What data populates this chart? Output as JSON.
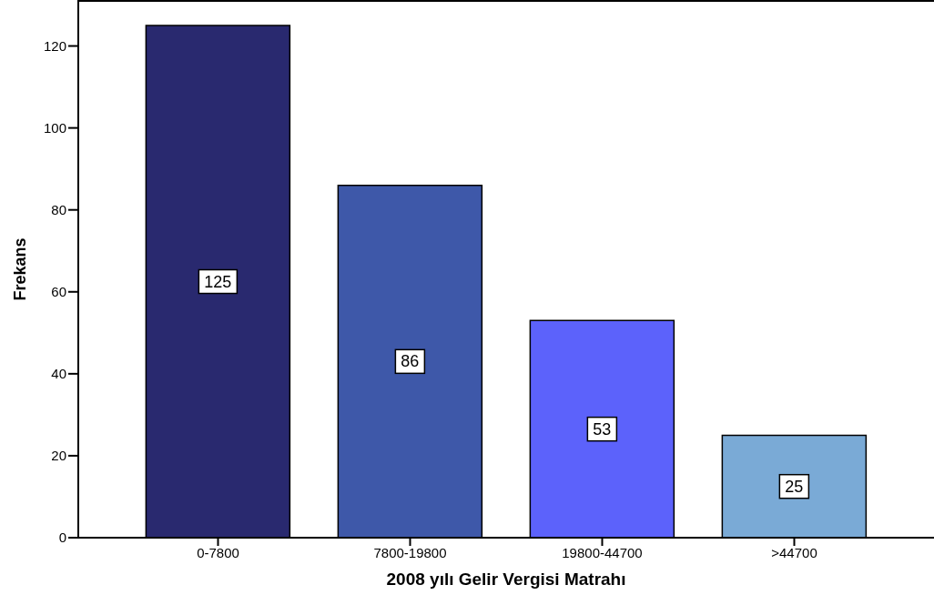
{
  "chart_data": {
    "type": "bar",
    "xlabel": "2008 yılı Gelir Vergisi Matrahı",
    "ylabel": "Frekans",
    "categories": [
      "0-7800",
      "7800-19800",
      "19800-44700",
      ">44700"
    ],
    "values": [
      125,
      86,
      53,
      25
    ],
    "colors": [
      "#29296f",
      "#3e58a9",
      "#5c62fb",
      "#7aaad6"
    ],
    "ylim": [
      0,
      131
    ],
    "yticks": [
      0,
      20,
      40,
      60,
      80,
      100,
      120
    ],
    "data_labels": true
  }
}
